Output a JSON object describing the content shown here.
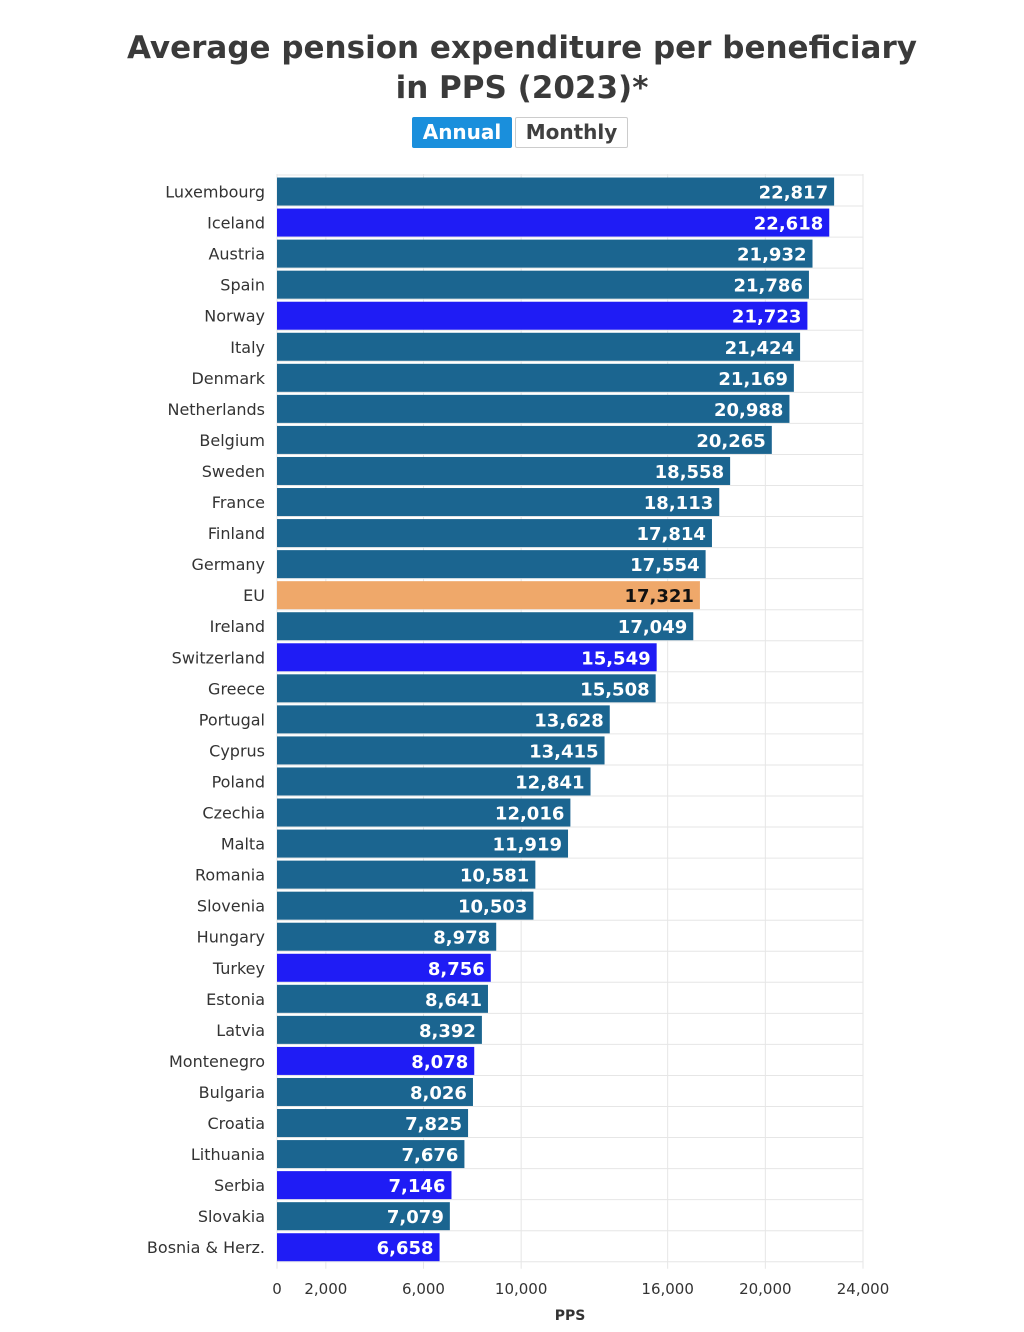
{
  "title_line1": "Average pension expenditure per beneficiary",
  "title_line2": "in PPS (2023)*",
  "toggle": {
    "annual_label": "Annual",
    "monthly_label": "Monthly"
  },
  "colors": {
    "eu_member": "#1b6590",
    "non_eu": "#1f1cf5",
    "eu_average": "#efa86a",
    "grid": "#e6e6e6"
  },
  "chart_data": {
    "type": "bar",
    "orientation": "horizontal",
    "xlabel": "PPS",
    "xlim": [
      0,
      24000
    ],
    "xticks": [
      0,
      2000,
      6000,
      10000,
      16000,
      20000,
      24000
    ],
    "xtick_labels": [
      "0",
      "2,000",
      "6,000",
      "10,000",
      "16,000",
      "20,000",
      "24,000"
    ],
    "grid": true,
    "categories": [
      "Luxembourg",
      "Iceland",
      "Austria",
      "Spain",
      "Norway",
      "Italy",
      "Denmark",
      "Netherlands",
      "Belgium",
      "Sweden",
      "France",
      "Finland",
      "Germany",
      "EU",
      "Ireland",
      "Switzerland",
      "Greece",
      "Portugal",
      "Cyprus",
      "Poland",
      "Czechia",
      "Malta",
      "Romania",
      "Slovenia",
      "Hungary",
      "Turkey",
      "Estonia",
      "Latvia",
      "Montenegro",
      "Bulgaria",
      "Croatia",
      "Lithuania",
      "Serbia",
      "Slovakia",
      "Bosnia & Herz."
    ],
    "values": [
      22817,
      22618,
      21932,
      21786,
      21723,
      21424,
      21169,
      20988,
      20265,
      18558,
      18113,
      17814,
      17554,
      17321,
      17049,
      15549,
      15508,
      13628,
      13415,
      12841,
      12016,
      11919,
      10581,
      10503,
      8978,
      8756,
      8641,
      8392,
      8078,
      8026,
      7825,
      7676,
      7146,
      7079,
      6658
    ],
    "value_labels": [
      "22,817",
      "22,618",
      "21,932",
      "21,786",
      "21,723",
      "21,424",
      "21,169",
      "20,988",
      "20,265",
      "18,558",
      "18,113",
      "17,814",
      "17,554",
      "17,321",
      "17,049",
      "15,549",
      "15,508",
      "13,628",
      "13,415",
      "12,841",
      "12,016",
      "11,919",
      "10,581",
      "10,503",
      "8,978",
      "8,756",
      "8,641",
      "8,392",
      "8,078",
      "8,026",
      "7,825",
      "7,676",
      "7,146",
      "7,079",
      "6,658"
    ],
    "group": [
      "eu",
      "non_eu",
      "eu",
      "eu",
      "non_eu",
      "eu",
      "eu",
      "eu",
      "eu",
      "eu",
      "eu",
      "eu",
      "eu",
      "eu_average",
      "eu",
      "non_eu",
      "eu",
      "eu",
      "eu",
      "eu",
      "eu",
      "eu",
      "eu",
      "eu",
      "eu",
      "non_eu",
      "eu",
      "eu",
      "non_eu",
      "eu",
      "eu",
      "eu",
      "non_eu",
      "eu",
      "non_eu"
    ]
  }
}
